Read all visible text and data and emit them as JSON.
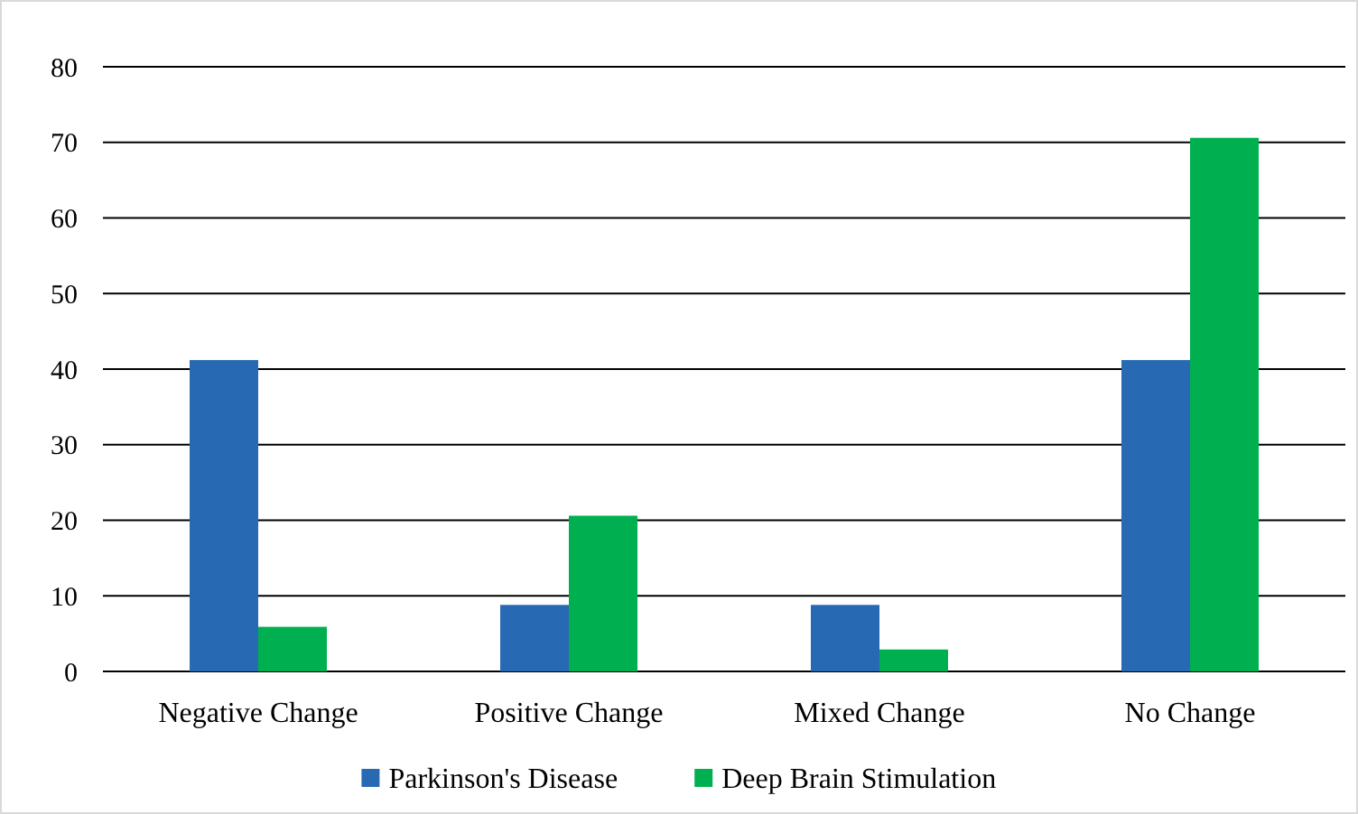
{
  "chart_data": {
    "type": "bar",
    "categories": [
      "Negative Change",
      "Positive Change",
      "Mixed Change",
      "No Change"
    ],
    "series": [
      {
        "name": "Parkinson's Disease",
        "color": "#2869b3",
        "values": [
          41.2,
          8.8,
          8.8,
          41.2
        ]
      },
      {
        "name": "Deep Brain Stimulation",
        "color": "#00b050",
        "values": [
          5.9,
          20.6,
          2.9,
          70.6
        ]
      }
    ],
    "ylim": [
      0,
      80
    ],
    "yticks": [
      0,
      10,
      20,
      30,
      40,
      50,
      60,
      70,
      80
    ],
    "grid": "y",
    "legend": "bottom"
  }
}
